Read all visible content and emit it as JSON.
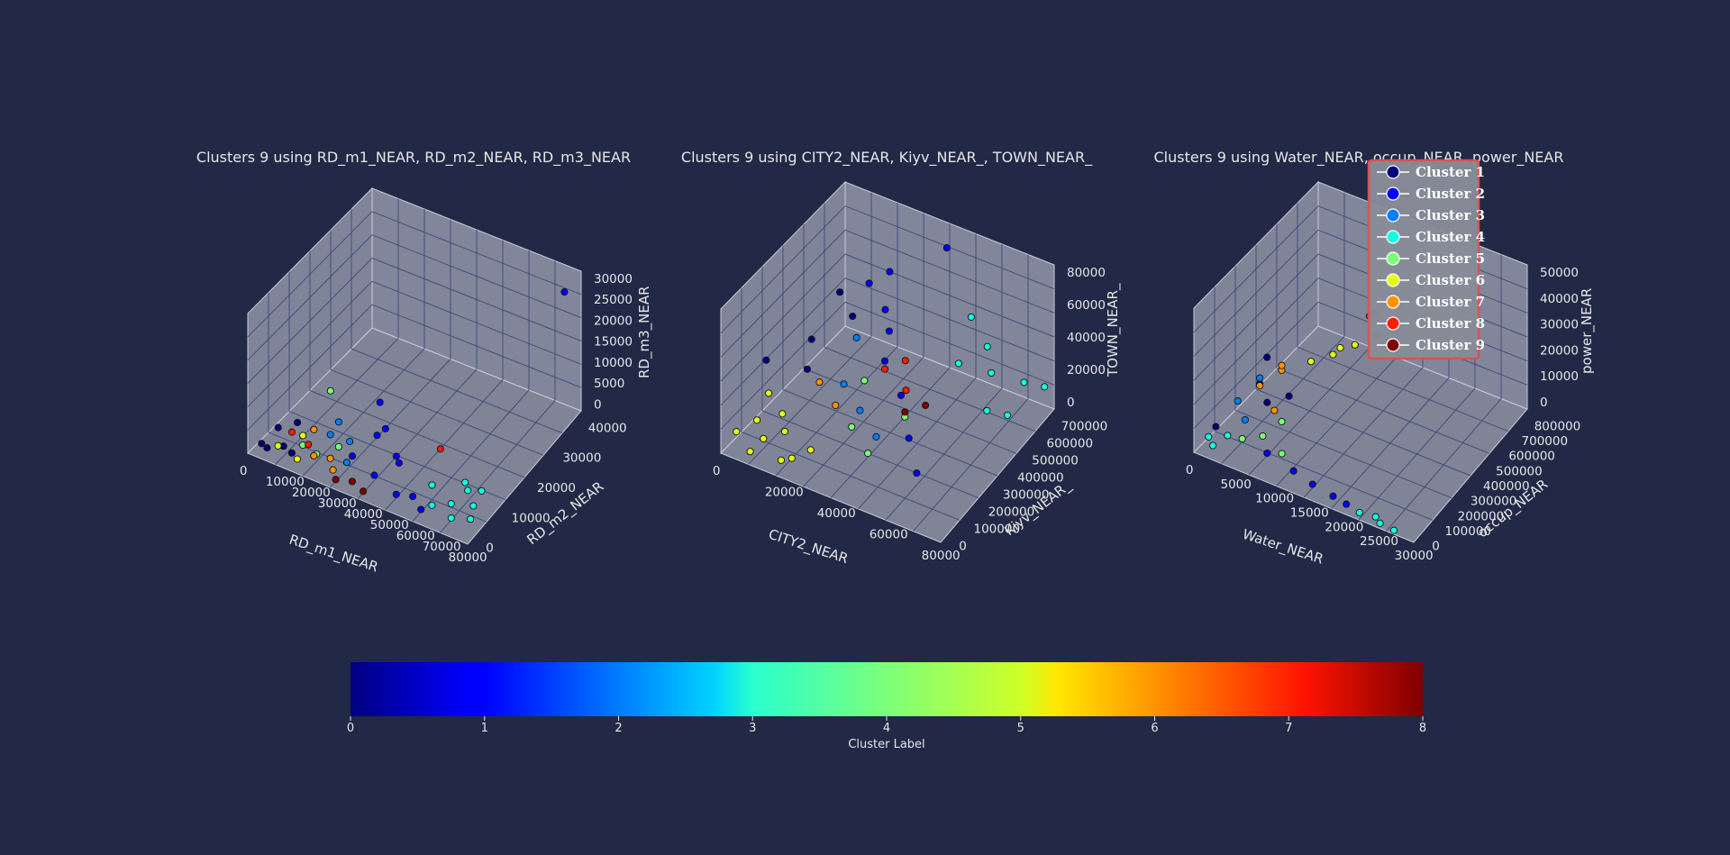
{
  "figure": {
    "colorbar": {
      "label": "Cluster Label",
      "ticks": [
        "0",
        "1",
        "2",
        "3",
        "4",
        "5",
        "6",
        "7",
        "8"
      ],
      "colormap": "jet"
    },
    "legend": {
      "items": [
        {
          "label": "Cluster 1",
          "color": "#00007f"
        },
        {
          "label": "Cluster 2",
          "color": "#0000ff"
        },
        {
          "label": "Cluster 3",
          "color": "#007fff"
        },
        {
          "label": "Cluster 4",
          "color": "#15ffe1"
        },
        {
          "label": "Cluster 5",
          "color": "#7cff79"
        },
        {
          "label": "Cluster 6",
          "color": "#e4ff13"
        },
        {
          "label": "Cluster 7",
          "color": "#ff9400"
        },
        {
          "label": "Cluster 8",
          "color": "#ff1d00"
        },
        {
          "label": "Cluster 9",
          "color": "#7f0000"
        }
      ],
      "placement": "upper right of third plot"
    }
  },
  "chart_data": [
    {
      "type": "scatter",
      "projection": "3d",
      "title": "Clusters 9 using RD_m1_NEAR, RD_m2_NEAR, RD_m3_NEAR",
      "xlabel": "RD_m1_NEAR",
      "ylabel": "RD_m2_NEAR",
      "zlabel": "RD_m3_NEAR",
      "xlim": [
        0,
        80000
      ],
      "ylim": [
        0,
        45000
      ],
      "zlim": [
        0,
        31000
      ],
      "xticks": [
        "0",
        "10000",
        "20000",
        "30000",
        "40000",
        "50000",
        "60000",
        "70000",
        "80000"
      ],
      "yticks": [
        "0",
        "10000",
        "20000",
        "30000",
        "40000"
      ],
      "zticks": [
        "0",
        "5000",
        "10000",
        "15000",
        "20000",
        "25000",
        "30000"
      ],
      "series": [
        {
          "cluster": 1,
          "points": [
            [
              2000,
              3000,
              800
            ],
            [
              5000,
              2000,
              1200
            ],
            [
              8000,
              5000,
              500
            ],
            [
              3000,
              8000,
              1500
            ],
            [
              12000,
              4000,
              600
            ],
            [
              6000,
              12000,
              900
            ]
          ]
        },
        {
          "cluster": 2,
          "points": [
            [
              30000,
              8000,
              2000
            ],
            [
              40000,
              6000,
              1500
            ],
            [
              45000,
              10000,
              3000
            ],
            [
              50000,
              4000,
              1000
            ],
            [
              35000,
              15000,
              5000
            ],
            [
              38000,
              9000,
              8000
            ],
            [
              55000,
              5000,
              1200
            ],
            [
              42000,
              12000,
              2500
            ],
            [
              28000,
              20000,
              6000
            ],
            [
              60000,
              3000,
              800
            ],
            [
              75000,
              40000,
              30000
            ]
          ]
        },
        {
          "cluster": 3,
          "points": [
            [
              20000,
              10000,
              3000
            ],
            [
              25000,
              12000,
              1500
            ],
            [
              18000,
              15000,
              2200
            ],
            [
              30000,
              6000,
              1800
            ]
          ]
        },
        {
          "cluster": 4,
          "points": [
            [
              62000,
              5000,
              1000
            ],
            [
              66000,
              8000,
              500
            ],
            [
              70000,
              4000,
              800
            ],
            [
              72000,
              10000,
              300
            ],
            [
              68000,
              12000,
              1500
            ],
            [
              75000,
              6000,
              600
            ],
            [
              64000,
              15000,
              400
            ],
            [
              71000,
              14000,
              900
            ],
            [
              58000,
              9000,
              2000
            ]
          ]
        },
        {
          "cluster": 5,
          "points": [
            [
              15000,
              5000,
              2500
            ],
            [
              22000,
              3000,
              3500
            ],
            [
              10000,
              20000,
              4000
            ],
            [
              25000,
              8000,
              2800
            ]
          ]
        },
        {
          "cluster": 6,
          "points": [
            [
              8000,
              3000,
              1800
            ],
            [
              12000,
              8000,
              2000
            ],
            [
              16000,
              2000,
              1500
            ]
          ]
        },
        {
          "cluster": 7,
          "points": [
            [
              20000,
              4000,
              2000
            ],
            [
              24000,
              6000,
              1200
            ],
            [
              14000,
              10000,
              2600
            ],
            [
              28000,
              3000,
              1500
            ]
          ]
        },
        {
          "cluster": 8,
          "points": [
            [
              10000,
              6000,
              3500
            ],
            [
              18000,
              4000,
              4000
            ],
            [
              50000,
              20000,
              1200
            ]
          ]
        },
        {
          "cluster": 9,
          "points": [
            [
              30000,
              2000,
              500
            ],
            [
              35000,
              3000,
              700
            ],
            [
              40000,
              2000,
              400
            ]
          ]
        }
      ]
    },
    {
      "type": "scatter",
      "projection": "3d",
      "title": "Clusters 9 using CITY2_NEAR, Kiyv_NEAR_, TOWN_NEAR_",
      "xlabel": "CITY2_NEAR",
      "ylabel": "Kiyv_NEAR_",
      "zlabel": "TOWN_NEAR_",
      "xlim": [
        0,
        90000
      ],
      "ylim": [
        0,
        750000
      ],
      "zlim": [
        0,
        90000
      ],
      "xticks": [
        "0",
        "20000",
        "40000",
        "60000",
        "80000"
      ],
      "yticks": [
        "0",
        "100000",
        "200000",
        "300000",
        "400000",
        "500000",
        "600000",
        "700000"
      ],
      "zticks": [
        "0",
        "20000",
        "40000",
        "60000",
        "80000"
      ],
      "series": [
        {
          "cluster": 1,
          "points": [
            [
              5000,
              200000,
              40000
            ],
            [
              10000,
              400000,
              35000
            ],
            [
              15000,
              300000,
              30000
            ],
            [
              20000,
              500000,
              45000
            ],
            [
              8000,
              600000,
              42000
            ]
          ]
        },
        {
          "cluster": 2,
          "points": [
            [
              20000,
              600000,
              55000
            ],
            [
              30000,
              550000,
              50000
            ],
            [
              40000,
              400000,
              40000
            ],
            [
              50000,
              350000,
              30000
            ],
            [
              60000,
              250000,
              20000
            ],
            [
              25000,
              650000,
              60000
            ],
            [
              35000,
              500000,
              45000
            ],
            [
              70000,
              150000,
              15000
            ],
            [
              45000,
              700000,
              82000
            ]
          ]
        },
        {
          "cluster": 3,
          "points": [
            [
              30000,
              300000,
              30000
            ],
            [
              40000,
              250000,
              25000
            ],
            [
              25000,
              450000,
              40000
            ],
            [
              50000,
              200000,
              20000
            ]
          ]
        },
        {
          "cluster": 4,
          "points": [
            [
              60000,
              550000,
              35000
            ],
            [
              70000,
              600000,
              30000
            ],
            [
              80000,
              650000,
              25000
            ],
            [
              85000,
              700000,
              20000
            ],
            [
              75000,
              500000,
              20000
            ],
            [
              65000,
              650000,
              38000
            ],
            [
              55000,
              700000,
              45000
            ],
            [
              80000,
              550000,
              15000
            ]
          ]
        },
        {
          "cluster": 5,
          "points": [
            [
              40000,
              200000,
              20000
            ],
            [
              50000,
              150000,
              15000
            ],
            [
              35000,
              350000,
              30000
            ],
            [
              55000,
              300000,
              25000
            ]
          ]
        },
        {
          "cluster": 6,
          "points": [
            [
              3000,
              50000,
              10000
            ],
            [
              8000,
              100000,
              15000
            ],
            [
              12000,
              80000,
              8000
            ],
            [
              18000,
              120000,
              12000
            ],
            [
              25000,
              60000,
              6000
            ],
            [
              30000,
              100000,
              10000
            ],
            [
              6000,
              200000,
              20000
            ],
            [
              15000,
              150000,
              18000
            ],
            [
              22000,
              40000,
              5000
            ],
            [
              10000,
              30000,
              4000
            ]
          ]
        },
        {
          "cluster": 7,
          "points": [
            [
              20000,
              300000,
              25000
            ],
            [
              30000,
              250000,
              22000
            ]
          ]
        },
        {
          "cluster": 8,
          "points": [
            [
              40000,
              400000,
              35000
            ],
            [
              50000,
              380000,
              30000
            ],
            [
              45000,
              450000,
              38000
            ]
          ]
        },
        {
          "cluster": 9,
          "points": [
            [
              55000,
              300000,
              28000
            ],
            [
              60000,
              350000,
              30000
            ]
          ]
        }
      ]
    },
    {
      "type": "scatter",
      "projection": "3d",
      "title": "Clusters 9 using Water_NEAR, occup_NEAR, power_NEAR",
      "xlabel": "Water_NEAR",
      "ylabel": "occup_NEAR",
      "zlabel": "power_NEAR",
      "xlim": [
        0,
        30000
      ],
      "ylim": [
        0,
        850000
      ],
      "zlim": [
        0,
        52000
      ],
      "xticks": [
        "0",
        "5000",
        "10000",
        "15000",
        "20000",
        "25000",
        "30000"
      ],
      "yticks": [
        "0",
        "100000",
        "200000",
        "300000",
        "400000",
        "500000",
        "600000",
        "700000",
        "800000"
      ],
      "zticks": [
        "0",
        "10000",
        "20000",
        "30000",
        "40000",
        "50000"
      ],
      "series": [
        {
          "cluster": 1,
          "points": [
            [
              1000,
              100000,
              5000
            ],
            [
              3000,
              300000,
              12000
            ],
            [
              5000,
              250000,
              10000
            ],
            [
              2000,
              400000,
              15000
            ],
            [
              6000,
              350000,
              8000
            ]
          ]
        },
        {
          "cluster": 2,
          "points": [
            [
              8000,
              100000,
              3000
            ],
            [
              12000,
              80000,
              2000
            ],
            [
              15000,
              60000,
              1500
            ],
            [
              18000,
              50000,
              1000
            ],
            [
              20000,
              40000,
              800
            ]
          ]
        },
        {
          "cluster": 3,
          "points": [
            [
              2000,
              200000,
              10000
            ],
            [
              4000,
              150000,
              8000
            ],
            [
              3000,
              300000,
              14000
            ]
          ]
        },
        {
          "cluster": 4,
          "points": [
            [
              1000,
              50000,
              4000
            ],
            [
              2000,
              30000,
              3000
            ],
            [
              3000,
              80000,
              5000
            ],
            [
              22000,
              30000,
              500
            ],
            [
              25000,
              20000,
              400
            ],
            [
              27000,
              15000,
              300
            ],
            [
              24000,
              40000,
              600
            ]
          ]
        },
        {
          "cluster": 5,
          "points": [
            [
              5000,
              80000,
              6000
            ],
            [
              7000,
              120000,
              7000
            ],
            [
              10000,
              100000,
              5000
            ],
            [
              8000,
              200000,
              9000
            ]
          ]
        },
        {
          "cluster": 6,
          "points": [
            [
              8000,
              400000,
              20000
            ],
            [
              10000,
              450000,
              22000
            ],
            [
              12000,
              500000,
              25000
            ],
            [
              9000,
              550000,
              18000
            ]
          ]
        },
        {
          "cluster": 7,
          "points": [
            [
              4000,
              250000,
              15000
            ],
            [
              6000,
              300000,
              20000
            ],
            [
              5000,
              350000,
              18000
            ],
            [
              7000,
              200000,
              12000
            ]
          ]
        },
        {
          "cluster": 8,
          "points": [
            [
              12000,
              600000,
              30000
            ],
            [
              15000,
              650000,
              35000
            ],
            [
              18000,
              700000,
              32000
            ],
            [
              14000,
              550000,
              28000
            ],
            [
              20000,
              720000,
              25000
            ],
            [
              16000,
              600000,
              38000
            ]
          ]
        },
        {
          "cluster": 9,
          "points": [
            [
              13000,
              580000,
              33000
            ],
            [
              17000,
              680000,
              30000
            ]
          ]
        }
      ]
    }
  ]
}
